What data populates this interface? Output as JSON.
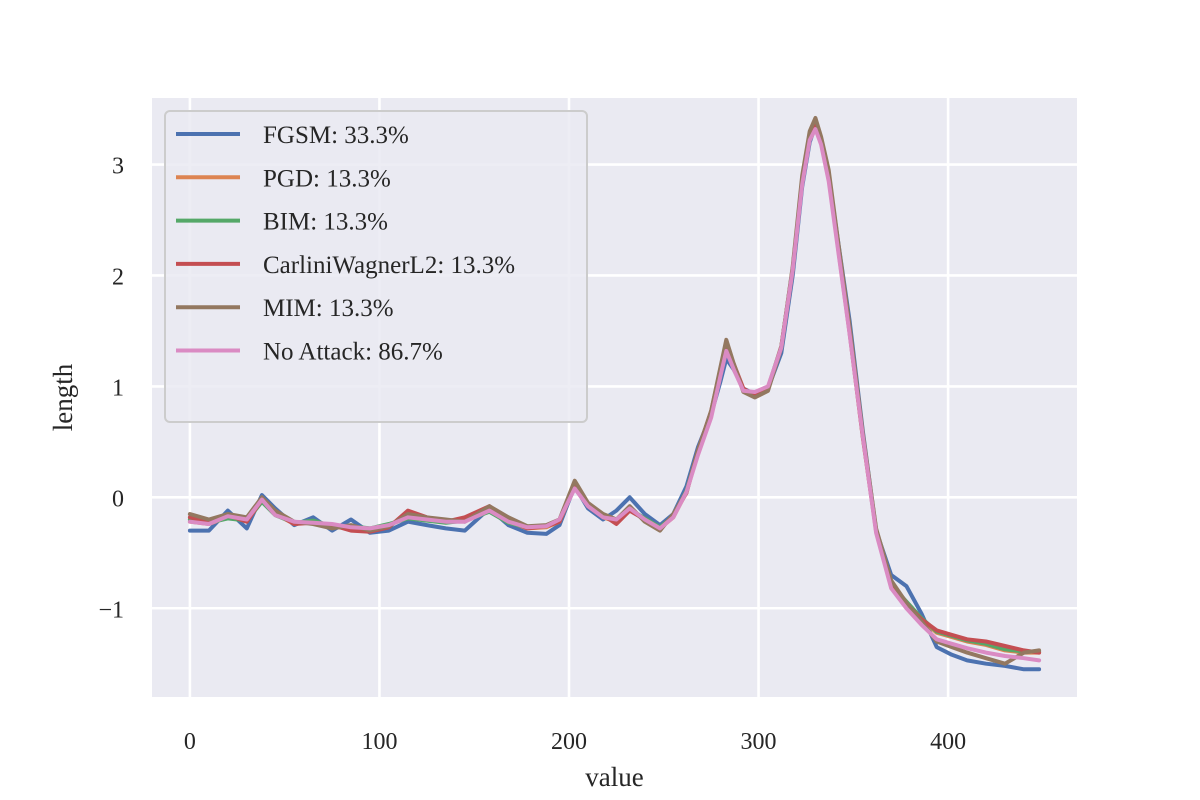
{
  "chart_data": {
    "type": "line",
    "title": "",
    "xlabel": "value",
    "ylabel": "length",
    "xlim": [
      -20,
      468
    ],
    "ylim": [
      -1.8,
      3.6
    ],
    "xticks": [
      0,
      100,
      200,
      300,
      400
    ],
    "yticks": [
      -1,
      0,
      1,
      2,
      3
    ],
    "ytick_labels": [
      "−1",
      "0",
      "1",
      "2",
      "3"
    ],
    "grid": true,
    "legend_position": "top-left",
    "x": [
      0,
      10,
      20,
      30,
      38,
      45,
      55,
      65,
      75,
      85,
      95,
      105,
      115,
      125,
      135,
      145,
      158,
      168,
      178,
      188,
      195,
      203,
      210,
      218,
      225,
      232,
      240,
      248,
      255,
      262,
      268,
      275,
      280,
      283,
      287,
      292,
      298,
      305,
      312,
      318,
      323,
      327,
      330,
      333,
      337,
      342,
      348,
      355,
      362,
      370,
      378,
      386,
      394,
      402,
      410,
      420,
      430,
      440,
      448
    ],
    "series": [
      {
        "name": "FGSM: 33.3%",
        "color": "#4c72b0",
        "values": [
          -0.3,
          -0.3,
          -0.12,
          -0.28,
          0.02,
          -0.1,
          -0.25,
          -0.18,
          -0.3,
          -0.2,
          -0.32,
          -0.3,
          -0.22,
          -0.25,
          -0.28,
          -0.3,
          -0.1,
          -0.25,
          -0.32,
          -0.33,
          -0.25,
          0.1,
          -0.1,
          -0.2,
          -0.12,
          0.0,
          -0.15,
          -0.25,
          -0.15,
          0.1,
          0.45,
          0.75,
          1.05,
          1.25,
          1.15,
          0.98,
          0.93,
          0.98,
          1.3,
          2.0,
          2.8,
          3.2,
          3.35,
          3.2,
          2.9,
          2.3,
          1.6,
          0.6,
          -0.3,
          -0.7,
          -0.8,
          -1.05,
          -1.35,
          -1.42,
          -1.47,
          -1.5,
          -1.52,
          -1.55,
          -1.55
        ]
      },
      {
        "name": "PGD: 13.3%",
        "color": "#dd8452",
        "values": [
          -0.22,
          -0.24,
          -0.18,
          -0.2,
          -0.03,
          -0.15,
          -0.24,
          -0.22,
          -0.27,
          -0.27,
          -0.29,
          -0.25,
          -0.18,
          -0.2,
          -0.22,
          -0.2,
          -0.12,
          -0.22,
          -0.28,
          -0.27,
          -0.22,
          0.1,
          -0.08,
          -0.18,
          -0.22,
          -0.1,
          -0.2,
          -0.28,
          -0.18,
          0.05,
          0.4,
          0.75,
          1.15,
          1.35,
          1.18,
          0.96,
          0.92,
          0.98,
          1.35,
          2.05,
          2.85,
          3.25,
          3.38,
          3.22,
          2.9,
          2.25,
          1.5,
          0.55,
          -0.3,
          -0.8,
          -0.95,
          -1.1,
          -1.22,
          -1.26,
          -1.3,
          -1.33,
          -1.38,
          -1.4,
          -1.4
        ]
      },
      {
        "name": "BIM: 13.3%",
        "color": "#55a868",
        "values": [
          -0.2,
          -0.23,
          -0.19,
          -0.21,
          -0.04,
          -0.16,
          -0.23,
          -0.21,
          -0.26,
          -0.26,
          -0.28,
          -0.24,
          -0.19,
          -0.21,
          -0.23,
          -0.21,
          -0.13,
          -0.23,
          -0.27,
          -0.26,
          -0.21,
          0.11,
          -0.07,
          -0.17,
          -0.21,
          -0.11,
          -0.19,
          -0.27,
          -0.17,
          0.06,
          0.41,
          0.76,
          1.16,
          1.36,
          1.19,
          0.97,
          0.93,
          0.99,
          1.36,
          2.06,
          2.86,
          3.26,
          3.39,
          3.23,
          2.91,
          2.26,
          1.51,
          0.56,
          -0.29,
          -0.79,
          -0.94,
          -1.09,
          -1.21,
          -1.25,
          -1.29,
          -1.32,
          -1.37,
          -1.39,
          -1.39
        ]
      },
      {
        "name": "CarliniWagnerL2: 13.3%",
        "color": "#c44e52",
        "values": [
          -0.18,
          -0.22,
          -0.16,
          -0.22,
          -0.02,
          -0.14,
          -0.24,
          -0.23,
          -0.25,
          -0.3,
          -0.31,
          -0.27,
          -0.12,
          -0.18,
          -0.22,
          -0.18,
          -0.08,
          -0.2,
          -0.28,
          -0.26,
          -0.22,
          0.12,
          -0.06,
          -0.16,
          -0.24,
          -0.12,
          -0.2,
          -0.29,
          -0.16,
          0.04,
          0.42,
          0.78,
          1.16,
          1.37,
          1.2,
          0.98,
          0.92,
          0.98,
          1.36,
          2.06,
          2.86,
          3.27,
          3.4,
          3.22,
          2.9,
          2.24,
          1.49,
          0.54,
          -0.3,
          -0.8,
          -0.96,
          -1.1,
          -1.2,
          -1.24,
          -1.28,
          -1.3,
          -1.34,
          -1.38,
          -1.4
        ]
      },
      {
        "name": "MIM: 13.3%",
        "color": "#937860",
        "values": [
          -0.15,
          -0.2,
          -0.15,
          -0.18,
          0.0,
          -0.12,
          -0.22,
          -0.24,
          -0.28,
          -0.25,
          -0.3,
          -0.26,
          -0.15,
          -0.18,
          -0.2,
          -0.22,
          -0.08,
          -0.18,
          -0.26,
          -0.25,
          -0.2,
          0.15,
          -0.05,
          -0.15,
          -0.2,
          -0.08,
          -0.22,
          -0.3,
          -0.15,
          0.05,
          0.42,
          0.78,
          1.18,
          1.42,
          1.2,
          0.95,
          0.9,
          0.96,
          1.35,
          2.08,
          2.9,
          3.3,
          3.42,
          3.25,
          2.95,
          2.3,
          1.55,
          0.58,
          -0.28,
          -0.75,
          -0.95,
          -1.12,
          -1.3,
          -1.35,
          -1.4,
          -1.45,
          -1.5,
          -1.4,
          -1.38
        ]
      },
      {
        "name": "No Attack: 86.7%",
        "color": "#da8bc3",
        "values": [
          -0.22,
          -0.24,
          -0.17,
          -0.2,
          -0.02,
          -0.16,
          -0.22,
          -0.23,
          -0.24,
          -0.27,
          -0.28,
          -0.25,
          -0.18,
          -0.2,
          -0.22,
          -0.22,
          -0.12,
          -0.22,
          -0.27,
          -0.26,
          -0.2,
          0.08,
          -0.08,
          -0.18,
          -0.2,
          -0.1,
          -0.2,
          -0.28,
          -0.18,
          0.05,
          0.38,
          0.72,
          1.1,
          1.32,
          1.15,
          0.96,
          0.95,
          1.0,
          1.35,
          2.05,
          2.82,
          3.22,
          3.32,
          3.18,
          2.85,
          2.22,
          1.48,
          0.55,
          -0.32,
          -0.82,
          -1.0,
          -1.15,
          -1.28,
          -1.32,
          -1.36,
          -1.4,
          -1.43,
          -1.45,
          -1.47
        ]
      }
    ]
  }
}
